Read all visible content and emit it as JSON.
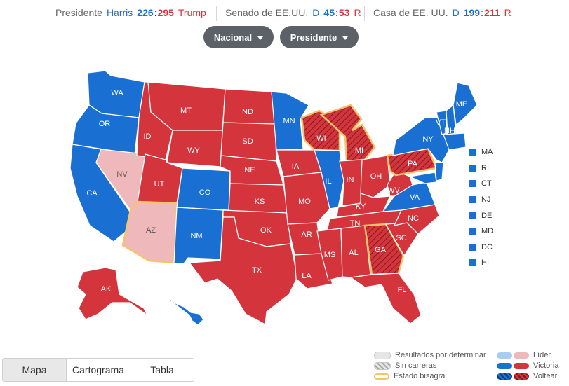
{
  "summary": {
    "president": {
      "label": "Presidente",
      "dem_name": "Harris",
      "dem_votes": "226",
      "rep_votes": "295",
      "rep_name": "Trump"
    },
    "senate": {
      "label": "Senado de EE.UU.",
      "dem_prefix": "D",
      "dem_seats": "45",
      "rep_seats": "53",
      "rep_suffix": "R"
    },
    "house": {
      "label": "Casa de EE. UU.",
      "dem_prefix": "D",
      "dem_seats": "199",
      "rep_seats": "211",
      "rep_suffix": "R"
    }
  },
  "filters": {
    "scope": "Nacional",
    "race": "Presidente"
  },
  "states": {
    "WA": "D",
    "OR": "D",
    "CA": "D",
    "NV": "lean-R",
    "ID": "R",
    "MT": "R",
    "WY": "R",
    "UT": "R",
    "AZ": "lean-R",
    "CO": "D",
    "NM": "D",
    "ND": "R",
    "SD": "R",
    "NE": "R",
    "KS": "R",
    "OK": "R",
    "TX": "R",
    "MN": "D",
    "IA": "R",
    "MO": "R",
    "AR": "R",
    "LA": "R",
    "WI": "flip-R",
    "IL": "D",
    "MI": "flip-R",
    "IN": "R",
    "OH": "R",
    "KY": "R",
    "TN": "R",
    "MS": "R",
    "AL": "R",
    "GA": "flip-R",
    "FL": "R",
    "SC": "R",
    "NC": "R",
    "VA": "D",
    "WV": "R",
    "PA": "flip-R",
    "NY": "D",
    "VT": "D",
    "NH": "D",
    "ME": "D",
    "AK": "R",
    "HI": "D"
  },
  "small_states": [
    "MA",
    "RI",
    "CT",
    "NJ",
    "DE",
    "MD",
    "DC",
    "HI"
  ],
  "tabs": [
    "Mapa",
    "Cartograma",
    "Tabla"
  ],
  "active_tab": "Mapa",
  "legend": {
    "pending": "Resultados por determinar",
    "no_race": "Sin carreras",
    "swing": "Estado bisagra",
    "leading": "Líder",
    "win": "Victoria",
    "flip": "Voltear"
  },
  "colors": {
    "dem": "#1a6fd3",
    "rep": "#d4343c",
    "dem_light": "#a9cdf0",
    "rep_light": "#efb9bb",
    "swing_outline": "#f5c36a"
  }
}
